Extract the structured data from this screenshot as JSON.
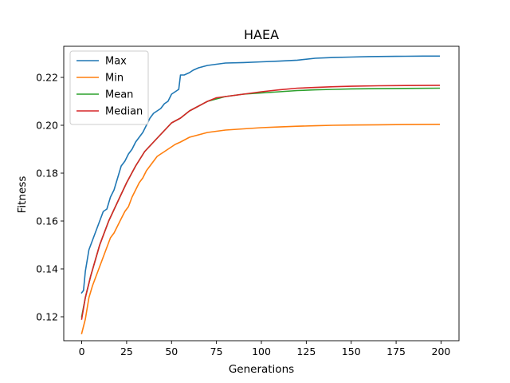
{
  "chart_data": {
    "type": "line",
    "title": "HAEA",
    "xlabel": "Generations",
    "ylabel": "Fitness",
    "xlim": [
      -10,
      210
    ],
    "ylim": [
      0.11,
      0.233
    ],
    "xticks": [
      0,
      25,
      50,
      75,
      100,
      125,
      150,
      175,
      200
    ],
    "yticks": [
      0.12,
      0.14,
      0.16,
      0.18,
      0.2,
      0.22
    ],
    "ytick_labels": [
      "0.12",
      "0.14",
      "0.16",
      "0.18",
      "0.20",
      "0.22"
    ],
    "grid": false,
    "legend_position": "top-left",
    "series": [
      {
        "name": "Max",
        "color": "#1f77b4",
        "x": [
          0,
          1,
          2,
          4,
          6,
          8,
          10,
          12,
          14,
          16,
          18,
          20,
          22,
          24,
          26,
          28,
          30,
          32,
          34,
          36,
          38,
          40,
          42,
          44,
          46,
          48,
          50,
          52,
          54,
          55,
          57,
          60,
          62,
          65,
          70,
          75,
          80,
          90,
          100,
          110,
          120,
          130,
          140,
          150,
          160,
          175,
          190,
          199
        ],
        "y": [
          0.13,
          0.131,
          0.139,
          0.148,
          0.152,
          0.156,
          0.16,
          0.164,
          0.165,
          0.17,
          0.173,
          0.178,
          0.183,
          0.185,
          0.188,
          0.19,
          0.193,
          0.195,
          0.197,
          0.2,
          0.203,
          0.205,
          0.206,
          0.207,
          0.209,
          0.21,
          0.213,
          0.214,
          0.215,
          0.221,
          0.221,
          0.222,
          0.223,
          0.224,
          0.225,
          0.2255,
          0.226,
          0.2262,
          0.2265,
          0.2268,
          0.2272,
          0.228,
          0.2283,
          0.2285,
          0.2287,
          0.2288,
          0.2289,
          0.2289
        ]
      },
      {
        "name": "Min",
        "color": "#ff7f0e",
        "x": [
          0,
          1,
          2,
          4,
          6,
          8,
          10,
          12,
          14,
          16,
          18,
          20,
          22,
          24,
          26,
          28,
          30,
          32,
          34,
          36,
          38,
          40,
          42,
          44,
          46,
          48,
          50,
          52,
          55,
          60,
          65,
          70,
          75,
          80,
          90,
          100,
          110,
          120,
          130,
          140,
          150,
          165,
          180,
          199
        ],
        "y": [
          0.113,
          0.116,
          0.119,
          0.128,
          0.133,
          0.137,
          0.141,
          0.145,
          0.149,
          0.153,
          0.155,
          0.158,
          0.161,
          0.164,
          0.166,
          0.17,
          0.173,
          0.176,
          0.178,
          0.181,
          0.183,
          0.185,
          0.187,
          0.188,
          0.189,
          0.19,
          0.191,
          0.192,
          0.193,
          0.195,
          0.196,
          0.197,
          0.1975,
          0.198,
          0.1985,
          0.199,
          0.1993,
          0.1996,
          0.1998,
          0.2,
          0.2001,
          0.2002,
          0.2003,
          0.2004
        ]
      },
      {
        "name": "Mean",
        "color": "#2ca02c",
        "x": [
          0,
          2,
          5,
          10,
          15,
          20,
          25,
          30,
          35,
          40,
          45,
          50,
          55,
          60,
          65,
          70,
          75,
          80,
          90,
          100,
          110,
          120,
          130,
          140,
          150,
          165,
          180,
          199
        ],
        "y": [
          0.12,
          0.128,
          0.137,
          0.15,
          0.16,
          0.168,
          0.176,
          0.183,
          0.189,
          0.193,
          0.197,
          0.201,
          0.203,
          0.206,
          0.208,
          0.21,
          0.211,
          0.212,
          0.213,
          0.2135,
          0.214,
          0.2145,
          0.2148,
          0.215,
          0.2152,
          0.2153,
          0.2154,
          0.2155
        ]
      },
      {
        "name": "Median",
        "color": "#d62728",
        "x": [
          0,
          2,
          5,
          10,
          15,
          20,
          25,
          30,
          35,
          40,
          45,
          50,
          55,
          60,
          65,
          70,
          75,
          80,
          90,
          100,
          110,
          120,
          130,
          140,
          150,
          165,
          180,
          199
        ],
        "y": [
          0.119,
          0.128,
          0.137,
          0.15,
          0.16,
          0.168,
          0.176,
          0.183,
          0.189,
          0.193,
          0.197,
          0.201,
          0.203,
          0.206,
          0.208,
          0.21,
          0.2115,
          0.212,
          0.213,
          0.214,
          0.2148,
          0.2155,
          0.2158,
          0.2161,
          0.2163,
          0.2165,
          0.2166,
          0.2167
        ]
      }
    ]
  }
}
